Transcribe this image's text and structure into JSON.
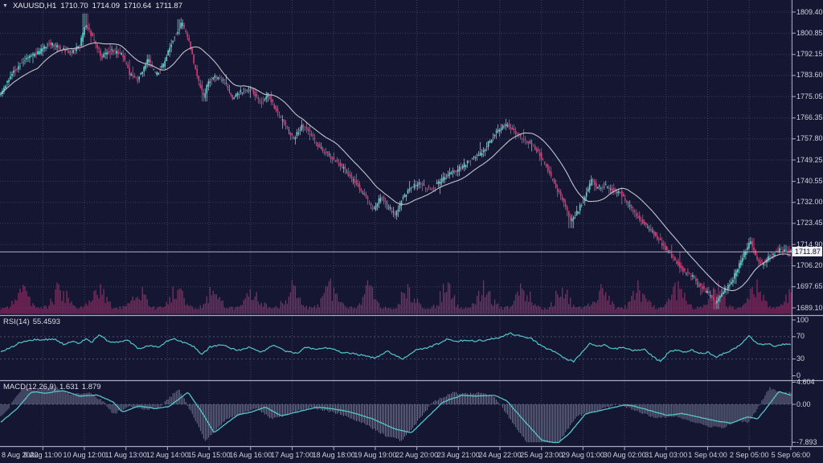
{
  "window": {
    "symbol_label": "XAUUSD,H1",
    "ohlc": {
      "open": "1710.70",
      "high": "1714.09",
      "low": "1710.64",
      "close": "1711.87"
    }
  },
  "colors": {
    "background": "#141632",
    "grid": "#3b4066",
    "candle_up": "#4ed6cb",
    "candle_down": "#ee2d6f",
    "wick_up": "#7be4da",
    "wick_down": "#f2558c",
    "ma_line": "#c3c3cc",
    "volume": "#90275f",
    "indicator_line": "#54c7ca",
    "macd_histogram": "#9da1b6",
    "axis_text": "#d2d4e0",
    "separator": "#a9abbf",
    "price_badge_bg": "#f0f0f4",
    "price_badge_text": "#10122a"
  },
  "chart_data": {
    "type": "candlestick",
    "symbol": "XAUUSD",
    "timeframe": "H1",
    "title": "XAUUSD,H1 candlestick chart with MA overlay, volume, RSI and MACD subwindows",
    "current_price": "1711.87",
    "price_axis_ticks": [
      "1809.40",
      "1800.85",
      "1792.15",
      "1783.60",
      "1775.05",
      "1766.35",
      "1757.80",
      "1749.25",
      "1740.55",
      "1732.00",
      "1723.45",
      "1714.90",
      "1706.20",
      "1697.65",
      "1689.10"
    ],
    "price_axis_range": [
      1689.1,
      1809.4
    ],
    "x_labels": [
      "8 Aug 2022",
      "9 Aug 11:00",
      "10 Aug 12:00",
      "11 Aug 13:00",
      "12 Aug 14:00",
      "15 Aug 15:00",
      "16 Aug 16:00",
      "17 Aug 17:00",
      "18 Aug 18:00",
      "19 Aug 19:00",
      "22 Aug 20:00",
      "23 Aug 21:00",
      "24 Aug 22:00",
      "25 Aug 23:00",
      "29 Aug 01:00",
      "30 Aug 02:00",
      "31 Aug 03:00",
      "1 Sep 04:00",
      "2 Sep 05:00",
      "5 Sep 06:00"
    ],
    "grid": true,
    "overlay": "gray moving-average line (SMA)",
    "candle_count": 492,
    "price_keyframes": [
      [
        0.0,
        1775.5
      ],
      [
        0.008,
        1780
      ],
      [
        0.02,
        1786
      ],
      [
        0.035,
        1791
      ],
      [
        0.05,
        1793
      ],
      [
        0.062,
        1797
      ],
      [
        0.075,
        1795
      ],
      [
        0.09,
        1793
      ],
      [
        0.102,
        1796
      ],
      [
        0.109,
        1805
      ],
      [
        0.118,
        1799
      ],
      [
        0.13,
        1791
      ],
      [
        0.142,
        1794
      ],
      [
        0.155,
        1792
      ],
      [
        0.165,
        1784
      ],
      [
        0.175,
        1782
      ],
      [
        0.188,
        1790
      ],
      [
        0.198,
        1784
      ],
      [
        0.208,
        1788
      ],
      [
        0.22,
        1799
      ],
      [
        0.231,
        1805
      ],
      [
        0.24,
        1797
      ],
      [
        0.25,
        1783
      ],
      [
        0.258,
        1775
      ],
      [
        0.264,
        1781
      ],
      [
        0.272,
        1783
      ],
      [
        0.285,
        1781
      ],
      [
        0.295,
        1774
      ],
      [
        0.305,
        1777
      ],
      [
        0.318,
        1778
      ],
      [
        0.33,
        1772
      ],
      [
        0.34,
        1776
      ],
      [
        0.352,
        1768
      ],
      [
        0.363,
        1762
      ],
      [
        0.372,
        1758
      ],
      [
        0.382,
        1763
      ],
      [
        0.39,
        1762
      ],
      [
        0.4,
        1756
      ],
      [
        0.412,
        1752
      ],
      [
        0.425,
        1749
      ],
      [
        0.437,
        1745
      ],
      [
        0.45,
        1740
      ],
      [
        0.463,
        1734
      ],
      [
        0.472,
        1729
      ],
      [
        0.482,
        1734
      ],
      [
        0.49,
        1731
      ],
      [
        0.5,
        1727
      ],
      [
        0.51,
        1734
      ],
      [
        0.52,
        1738
      ],
      [
        0.532,
        1740
      ],
      [
        0.545,
        1737
      ],
      [
        0.558,
        1741
      ],
      [
        0.57,
        1744
      ],
      [
        0.582,
        1746
      ],
      [
        0.595,
        1749
      ],
      [
        0.608,
        1752
      ],
      [
        0.62,
        1757
      ],
      [
        0.632,
        1762
      ],
      [
        0.642,
        1764
      ],
      [
        0.652,
        1760
      ],
      [
        0.662,
        1758
      ],
      [
        0.672,
        1756
      ],
      [
        0.682,
        1752
      ],
      [
        0.692,
        1746
      ],
      [
        0.7,
        1740
      ],
      [
        0.712,
        1733
      ],
      [
        0.722,
        1724
      ],
      [
        0.73,
        1728
      ],
      [
        0.74,
        1734
      ],
      [
        0.748,
        1741
      ],
      [
        0.755,
        1738
      ],
      [
        0.765,
        1739
      ],
      [
        0.775,
        1737
      ],
      [
        0.785,
        1736
      ],
      [
        0.795,
        1731
      ],
      [
        0.805,
        1727
      ],
      [
        0.815,
        1723
      ],
      [
        0.825,
        1720
      ],
      [
        0.835,
        1716
      ],
      [
        0.845,
        1712
      ],
      [
        0.855,
        1708
      ],
      [
        0.865,
        1704
      ],
      [
        0.875,
        1702
      ],
      [
        0.885,
        1698
      ],
      [
        0.895,
        1695
      ],
      [
        0.905,
        1691
      ],
      [
        0.915,
        1696
      ],
      [
        0.925,
        1700
      ],
      [
        0.933,
        1705
      ],
      [
        0.942,
        1712
      ],
      [
        0.949,
        1716
      ],
      [
        0.956,
        1710
      ],
      [
        0.963,
        1707
      ],
      [
        0.97,
        1709
      ],
      [
        0.978,
        1711
      ],
      [
        0.986,
        1713
      ],
      [
        0.993,
        1712
      ],
      [
        1.0,
        1711.87
      ]
    ],
    "price_spikes": [
      {
        "t": 0.108,
        "high": 1808.8
      },
      {
        "t": 0.228,
        "high": 1806.5
      },
      {
        "t": 0.95,
        "high": 1717.5
      },
      {
        "t": 0.905,
        "low": 1688.6
      },
      {
        "t": 0.5,
        "low": 1726.0
      },
      {
        "t": 0.722,
        "low": 1721.5
      },
      {
        "t": 0.258,
        "low": 1773.0
      }
    ],
    "indicators": [
      {
        "name": "RSI",
        "label": "RSI(14)",
        "value": "55.4593",
        "axis_ticks": [
          "100",
          "70",
          "30",
          "0"
        ],
        "levels": [
          70,
          30
        ],
        "range": [
          0,
          100
        ],
        "keyframes": [
          [
            0.0,
            42
          ],
          [
            0.012,
            50
          ],
          [
            0.025,
            60
          ],
          [
            0.04,
            64
          ],
          [
            0.05,
            65
          ],
          [
            0.07,
            65
          ],
          [
            0.08,
            56
          ],
          [
            0.09,
            62
          ],
          [
            0.1,
            58
          ],
          [
            0.107,
            66
          ],
          [
            0.115,
            60
          ],
          [
            0.125,
            74
          ],
          [
            0.135,
            62
          ],
          [
            0.15,
            60
          ],
          [
            0.16,
            64
          ],
          [
            0.175,
            48
          ],
          [
            0.19,
            55
          ],
          [
            0.2,
            50
          ],
          [
            0.21,
            62
          ],
          [
            0.22,
            67
          ],
          [
            0.23,
            60
          ],
          [
            0.245,
            52
          ],
          [
            0.255,
            38
          ],
          [
            0.265,
            52
          ],
          [
            0.28,
            55
          ],
          [
            0.3,
            45
          ],
          [
            0.315,
            52
          ],
          [
            0.33,
            42
          ],
          [
            0.345,
            55
          ],
          [
            0.36,
            44
          ],
          [
            0.375,
            40
          ],
          [
            0.385,
            52
          ],
          [
            0.4,
            47
          ],
          [
            0.415,
            50
          ],
          [
            0.43,
            42
          ],
          [
            0.445,
            40
          ],
          [
            0.46,
            36
          ],
          [
            0.475,
            32
          ],
          [
            0.49,
            45
          ],
          [
            0.5,
            35
          ],
          [
            0.51,
            30
          ],
          [
            0.525,
            46
          ],
          [
            0.54,
            50
          ],
          [
            0.555,
            58
          ],
          [
            0.565,
            66
          ],
          [
            0.578,
            62
          ],
          [
            0.59,
            64
          ],
          [
            0.6,
            62
          ],
          [
            0.615,
            64
          ],
          [
            0.63,
            68
          ],
          [
            0.645,
            76
          ],
          [
            0.66,
            70
          ],
          [
            0.672,
            66
          ],
          [
            0.685,
            52
          ],
          [
            0.7,
            44
          ],
          [
            0.715,
            30
          ],
          [
            0.725,
            26
          ],
          [
            0.735,
            40
          ],
          [
            0.745,
            58
          ],
          [
            0.755,
            52
          ],
          [
            0.765,
            55
          ],
          [
            0.775,
            48
          ],
          [
            0.79,
            50
          ],
          [
            0.8,
            45
          ],
          [
            0.815,
            48
          ],
          [
            0.825,
            35
          ],
          [
            0.835,
            25
          ],
          [
            0.845,
            42
          ],
          [
            0.855,
            46
          ],
          [
            0.865,
            42
          ],
          [
            0.875,
            46
          ],
          [
            0.885,
            40
          ],
          [
            0.895,
            42
          ],
          [
            0.905,
            33
          ],
          [
            0.915,
            40
          ],
          [
            0.925,
            46
          ],
          [
            0.932,
            52
          ],
          [
            0.94,
            60
          ],
          [
            0.947,
            73
          ],
          [
            0.955,
            60
          ],
          [
            0.963,
            55
          ],
          [
            0.972,
            58
          ],
          [
            0.98,
            52
          ],
          [
            0.99,
            57
          ],
          [
            1.0,
            55.46
          ]
        ]
      },
      {
        "name": "MACD",
        "label": "MACD(12,26,9)",
        "values": [
          "1.631",
          "1.879"
        ],
        "axis_ticks": [
          "4.604",
          "0.00",
          "-7.893"
        ],
        "range": [
          -7.893,
          4.604
        ],
        "keyframes": [
          [
            0.0,
            -3.7
          ],
          [
            0.02,
            -1.0
          ],
          [
            0.038,
            2.45
          ],
          [
            0.044,
            2.6
          ],
          [
            0.056,
            2.3
          ],
          [
            0.079,
            2.85
          ],
          [
            0.1,
            1.7
          ],
          [
            0.122,
            1.95
          ],
          [
            0.142,
            0.5
          ],
          [
            0.154,
            -1.6
          ],
          [
            0.175,
            -0.35
          ],
          [
            0.195,
            -0.9
          ],
          [
            0.213,
            -0.45
          ],
          [
            0.237,
            2.5
          ],
          [
            0.254,
            -1.5
          ],
          [
            0.27,
            -5.9
          ],
          [
            0.285,
            -4.0
          ],
          [
            0.3,
            -2.2
          ],
          [
            0.315,
            -1.7
          ],
          [
            0.335,
            -0.6
          ],
          [
            0.355,
            -2.4
          ],
          [
            0.4,
            -0.6
          ],
          [
            0.42,
            -0.9
          ],
          [
            0.44,
            -1.5
          ],
          [
            0.47,
            -3.0
          ],
          [
            0.5,
            -5.2
          ],
          [
            0.52,
            -5.9
          ],
          [
            0.535,
            -3.5
          ],
          [
            0.56,
            0.5
          ],
          [
            0.584,
            1.9
          ],
          [
            0.6,
            1.7
          ],
          [
            0.625,
            1.9
          ],
          [
            0.64,
            0.8
          ],
          [
            0.66,
            -3.0
          ],
          [
            0.685,
            -7.5
          ],
          [
            0.705,
            -8.1
          ],
          [
            0.72,
            -6.0
          ],
          [
            0.74,
            -2.0
          ],
          [
            0.79,
            -0.1
          ],
          [
            0.8,
            -0.3
          ],
          [
            0.82,
            -1.2
          ],
          [
            0.843,
            -2.3
          ],
          [
            0.862,
            -1.9
          ],
          [
            0.885,
            -2.7
          ],
          [
            0.91,
            -3.6
          ],
          [
            0.925,
            -3.9
          ],
          [
            0.945,
            -2.6
          ],
          [
            0.958,
            -3.0
          ],
          [
            0.968,
            -1.0
          ],
          [
            0.985,
            2.7
          ],
          [
            1.0,
            1.879
          ]
        ]
      }
    ]
  }
}
